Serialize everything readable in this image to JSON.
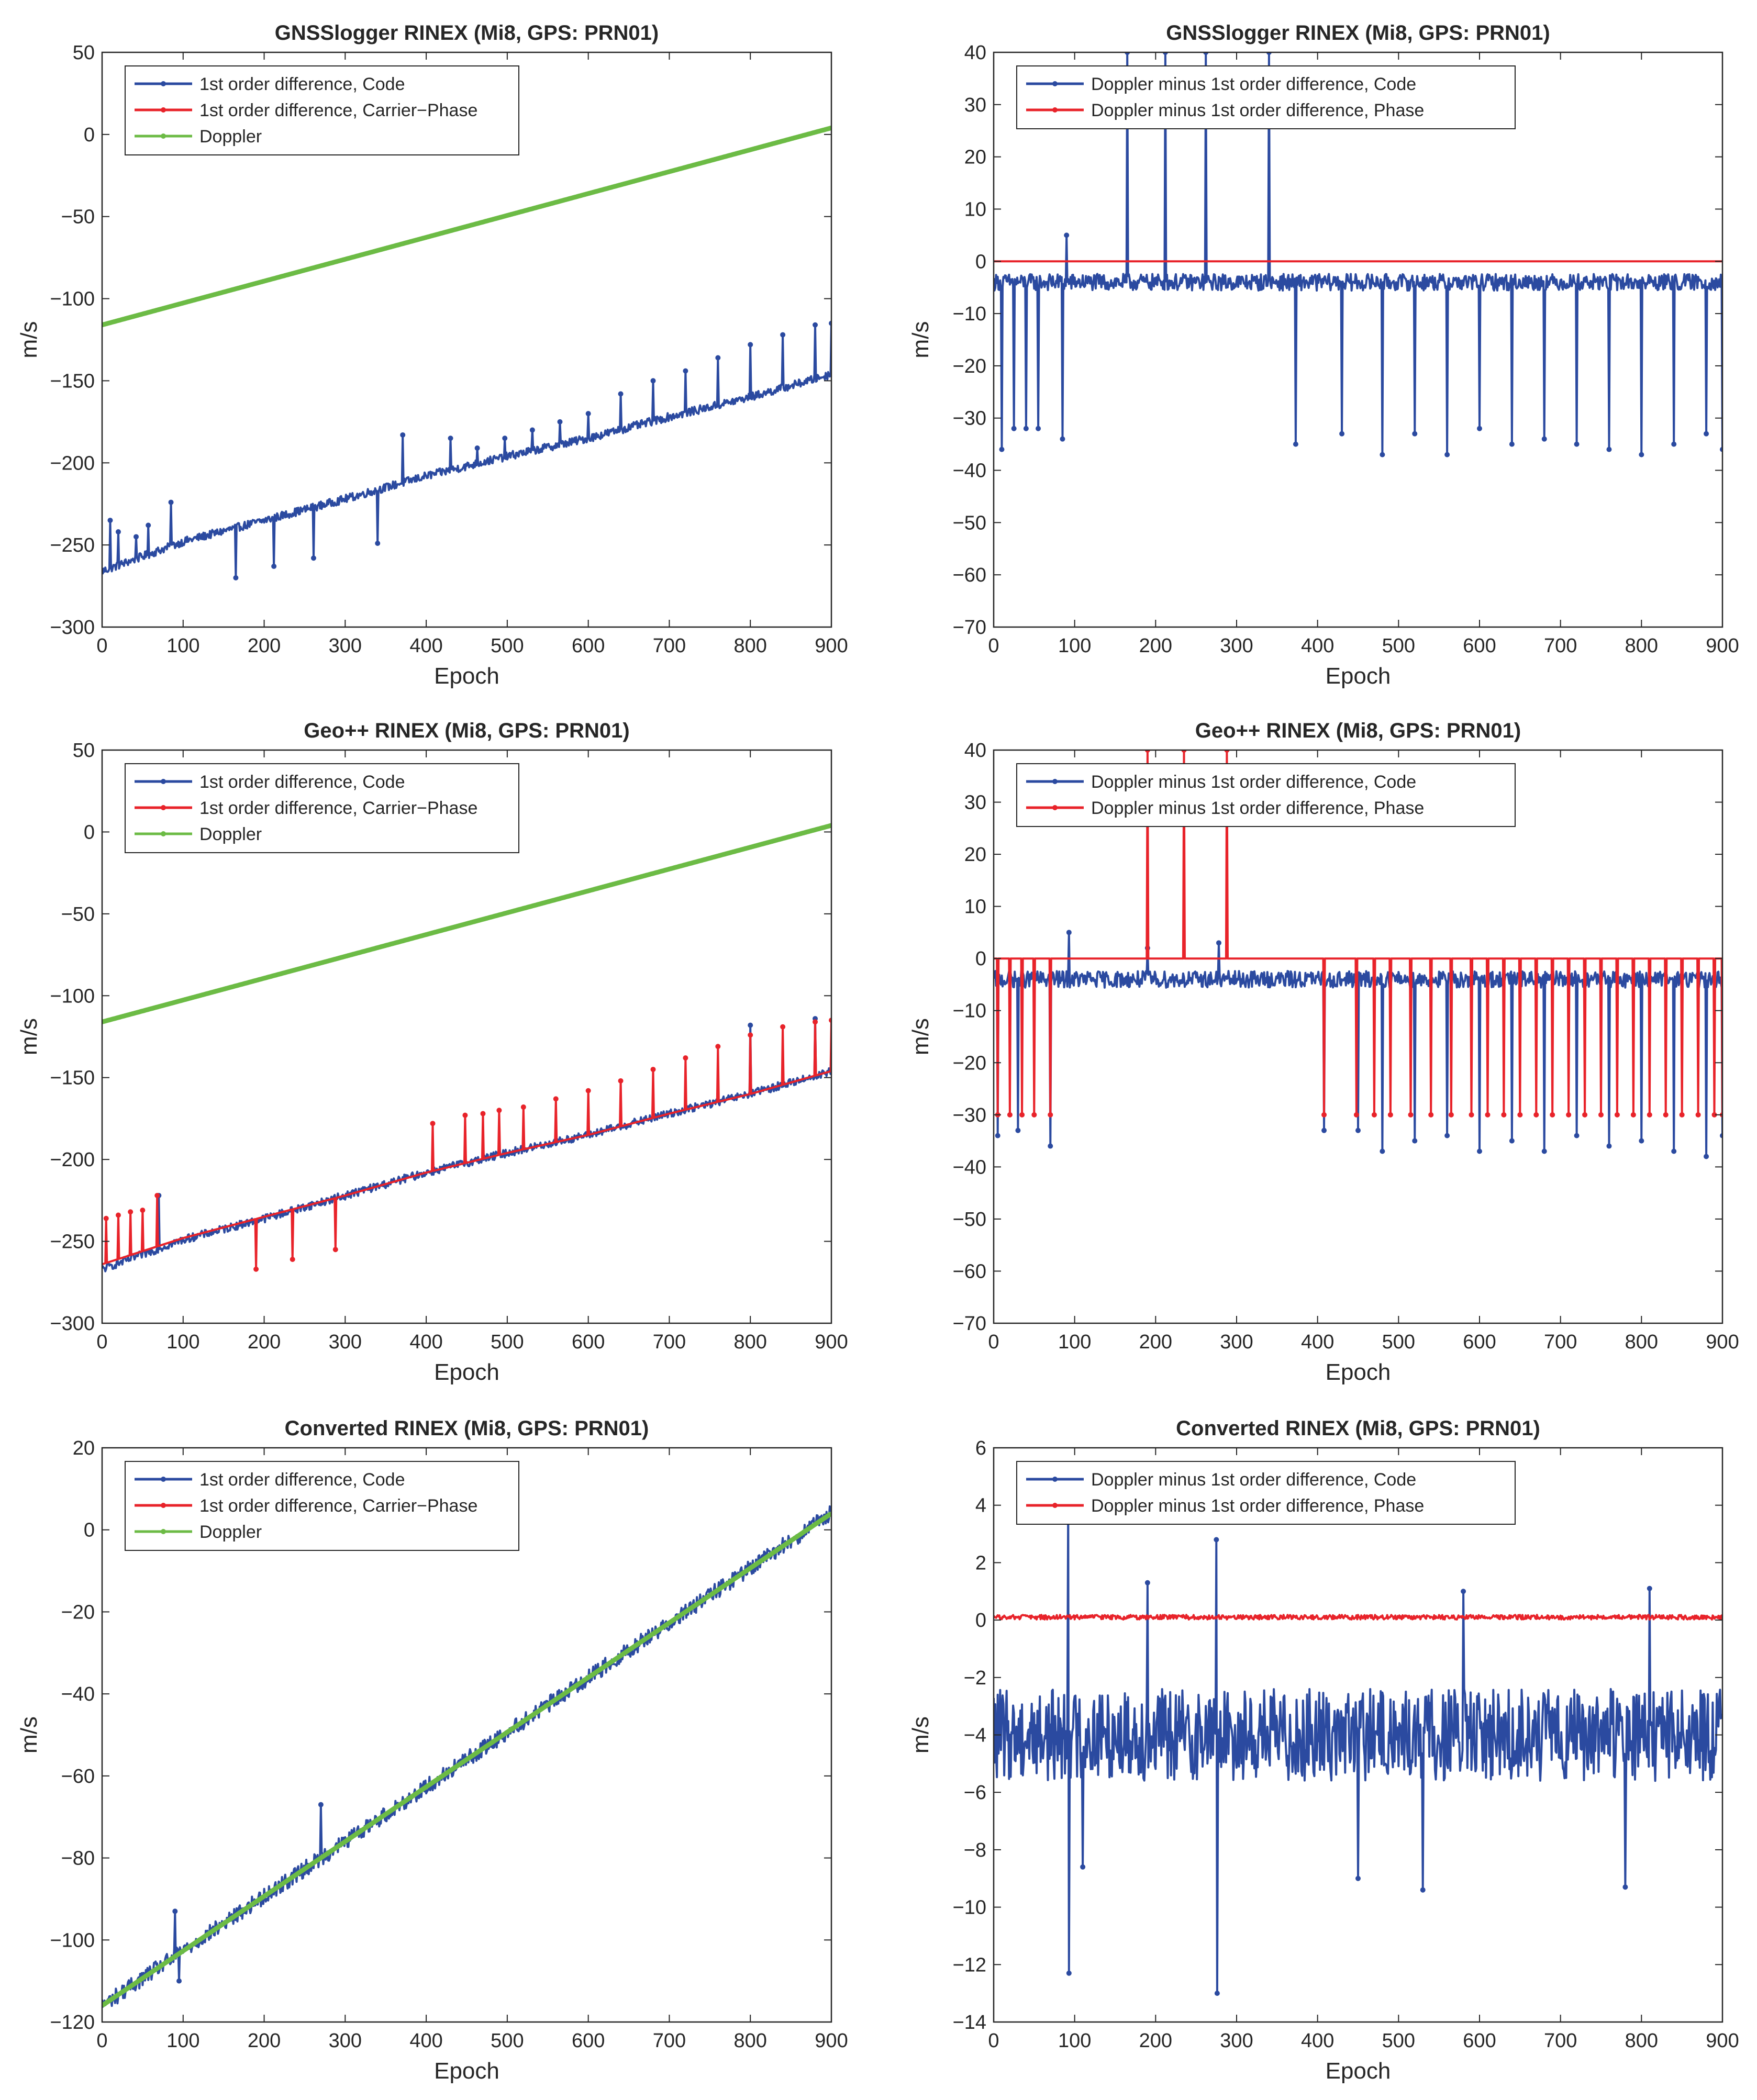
{
  "colors": {
    "code": "#2b4aa0",
    "phase": "#e8232a",
    "doppler": "#6cbb45",
    "axis": "#262626"
  },
  "chart_data": [
    {
      "id": "gnsslogger-velocity",
      "type": "line",
      "title": "GNSSlogger RINEX (Mi8, GPS: PRN01)",
      "xlabel": "Epoch",
      "ylabel": "m/s",
      "xlim": [
        0,
        900
      ],
      "ylim": [
        -300,
        50
      ],
      "xticks": [
        0,
        100,
        200,
        300,
        400,
        500,
        600,
        700,
        800,
        900
      ],
      "yticks": [
        -300,
        -250,
        -200,
        -150,
        -100,
        -50,
        0,
        50
      ],
      "legend": [
        "1st order difference, Code",
        "1st order difference, Carrier−Phase",
        "Doppler"
      ],
      "series": [
        {
          "name": "1st order difference, Code",
          "color": "code",
          "x": [
            0,
            100,
            200,
            300,
            400,
            500,
            600,
            700,
            800,
            900
          ],
          "y": [
            -266,
            -248,
            -235,
            -222,
            -208,
            -196,
            -185,
            -172,
            -160,
            -146
          ],
          "spikes": [
            [
              10,
              -235
            ],
            [
              20,
              -242
            ],
            [
              42,
              -245
            ],
            [
              57,
              -238
            ],
            [
              85,
              -224
            ],
            [
              165,
              -270
            ],
            [
              212,
              -263
            ],
            [
              261,
              -258
            ],
            [
              340,
              -249
            ],
            [
              371,
              -183
            ],
            [
              430,
              -185
            ],
            [
              463,
              -191
            ],
            [
              497,
              -185
            ],
            [
              531,
              -180
            ],
            [
              565,
              -175
            ],
            [
              600,
              -170
            ],
            [
              640,
              -158
            ],
            [
              680,
              -150
            ],
            [
              720,
              -144
            ],
            [
              760,
              -136
            ],
            [
              800,
              -128
            ],
            [
              840,
              -122
            ],
            [
              880,
              -116
            ],
            [
              900,
              -115
            ]
          ]
        },
        {
          "name": "1st order difference, Carrier−Phase",
          "color": "phase",
          "x": [
            0,
            900
          ],
          "y": [
            -116,
            4
          ],
          "spikes": []
        },
        {
          "name": "Doppler",
          "color": "doppler",
          "x": [
            0,
            900
          ],
          "y": [
            -116,
            4
          ],
          "spikes": []
        }
      ]
    },
    {
      "id": "gnsslogger-residual",
      "type": "line",
      "title": "GNSSlogger RINEX (Mi8, GPS: PRN01)",
      "xlabel": "Epoch",
      "ylabel": "m/s",
      "xlim": [
        0,
        900
      ],
      "ylim": [
        -70,
        40
      ],
      "xticks": [
        0,
        100,
        200,
        300,
        400,
        500,
        600,
        700,
        800,
        900
      ],
      "yticks": [
        -70,
        -60,
        -50,
        -40,
        -30,
        -20,
        -10,
        0,
        10,
        20,
        30,
        40
      ],
      "legend": [
        "Doppler minus 1st order difference, Code",
        "Doppler minus 1st order difference, Phase"
      ],
      "series": [
        {
          "name": "Doppler minus 1st order difference, Code",
          "color": "code",
          "x": [
            0,
            900
          ],
          "y": [
            -4,
            -4
          ],
          "spikes": [
            [
              10,
              -36
            ],
            [
              25,
              -32
            ],
            [
              40,
              -32
            ],
            [
              55,
              -32
            ],
            [
              85,
              -34
            ],
            [
              90,
              5
            ],
            [
              165,
              40
            ],
            [
              212,
              40
            ],
            [
              262,
              40
            ],
            [
              340,
              40
            ],
            [
              373,
              -35
            ],
            [
              430,
              -33
            ],
            [
              480,
              -37
            ],
            [
              520,
              -33
            ],
            [
              560,
              -37
            ],
            [
              600,
              -32
            ],
            [
              640,
              -35
            ],
            [
              680,
              -34
            ],
            [
              720,
              -35
            ],
            [
              760,
              -36
            ],
            [
              800,
              -37
            ],
            [
              840,
              -35
            ],
            [
              880,
              -33
            ],
            [
              900,
              -36
            ]
          ]
        },
        {
          "name": "Doppler minus 1st order difference, Phase",
          "color": "phase",
          "x": [
            0,
            900
          ],
          "y": [
            0,
            0
          ],
          "spikes": []
        }
      ]
    },
    {
      "id": "geopp-velocity",
      "type": "line",
      "title": "Geo++ RINEX (Mi8, GPS: PRN01)",
      "xlabel": "Epoch",
      "ylabel": "m/s",
      "xlim": [
        0,
        900
      ],
      "ylim": [
        -300,
        50
      ],
      "xticks": [
        0,
        100,
        200,
        300,
        400,
        500,
        600,
        700,
        800,
        900
      ],
      "yticks": [
        -300,
        -250,
        -200,
        -150,
        -100,
        -50,
        0,
        50
      ],
      "legend": [
        "1st order difference, Code",
        "1st order difference, Carrier−Phase",
        "Doppler"
      ],
      "series": [
        {
          "name": "1st order difference, Code",
          "color": "code",
          "x": [
            0,
            100,
            200,
            300,
            400,
            500,
            600,
            700,
            800,
            900
          ],
          "y": [
            -267,
            -249,
            -236,
            -222,
            -208,
            -196,
            -185,
            -172,
            -160,
            -146
          ],
          "spikes": [
            [
              70,
              -222
            ],
            [
              800,
              -118
            ],
            [
              880,
              -114
            ]
          ]
        },
        {
          "name": "1st order difference, Carrier−Phase",
          "color": "phase",
          "x": [
            0,
            100,
            200,
            300,
            400,
            500,
            600,
            700,
            800,
            900
          ],
          "y": [
            -264,
            -248,
            -235,
            -222,
            -208,
            -196,
            -185,
            -172,
            -160,
            -146
          ],
          "spikes": [
            [
              5,
              -236
            ],
            [
              20,
              -234
            ],
            [
              35,
              -232
            ],
            [
              50,
              -231
            ],
            [
              68,
              -222
            ],
            [
              190,
              -267
            ],
            [
              235,
              -261
            ],
            [
              288,
              -255
            ],
            [
              408,
              -178
            ],
            [
              448,
              -173
            ],
            [
              470,
              -172
            ],
            [
              490,
              -170
            ],
            [
              520,
              -168
            ],
            [
              560,
              -163
            ],
            [
              600,
              -158
            ],
            [
              640,
              -152
            ],
            [
              680,
              -145
            ],
            [
              720,
              -138
            ],
            [
              760,
              -131
            ],
            [
              800,
              -124
            ],
            [
              840,
              -119
            ],
            [
              880,
              -116
            ],
            [
              900,
              -115
            ]
          ]
        },
        {
          "name": "Doppler",
          "color": "doppler",
          "x": [
            0,
            900
          ],
          "y": [
            -116,
            4
          ],
          "spikes": []
        }
      ]
    },
    {
      "id": "geopp-residual",
      "type": "line",
      "title": "Geo++ RINEX (Mi8, GPS: PRN01)",
      "xlabel": "Epoch",
      "ylabel": "m/s",
      "xlim": [
        0,
        900
      ],
      "ylim": [
        -70,
        40
      ],
      "xticks": [
        0,
        100,
        200,
        300,
        400,
        500,
        600,
        700,
        800,
        900
      ],
      "yticks": [
        -70,
        -60,
        -50,
        -40,
        -30,
        -20,
        -10,
        0,
        10,
        20,
        30,
        40
      ],
      "legend": [
        "Doppler minus 1st order difference, Code",
        "Doppler minus 1st order difference, Phase"
      ],
      "series": [
        {
          "name": "Doppler minus 1st order difference, Code",
          "color": "code",
          "x": [
            0,
            900
          ],
          "y": [
            -4,
            -4
          ],
          "spikes": [
            [
              5,
              -34
            ],
            [
              30,
              -33
            ],
            [
              70,
              -36
            ],
            [
              93,
              5
            ],
            [
              190,
              2
            ],
            [
              278,
              3
            ],
            [
              408,
              -33
            ],
            [
              450,
              -33
            ],
            [
              480,
              -37
            ],
            [
              520,
              -35
            ],
            [
              560,
              -34
            ],
            [
              600,
              -37
            ],
            [
              640,
              -35
            ],
            [
              680,
              -37
            ],
            [
              720,
              -34
            ],
            [
              760,
              -36
            ],
            [
              800,
              -35
            ],
            [
              840,
              -37
            ],
            [
              880,
              -38
            ],
            [
              900,
              -34
            ]
          ]
        },
        {
          "name": "Doppler minus 1st order difference, Phase",
          "color": "phase",
          "x": [
            0,
            900
          ],
          "y": [
            0,
            0
          ],
          "spikes": [
            [
              5,
              -30
            ],
            [
              20,
              -30
            ],
            [
              35,
              -30
            ],
            [
              50,
              -30
            ],
            [
              70,
              -30
            ],
            [
              190,
              40
            ],
            [
              235,
              40
            ],
            [
              288,
              40
            ],
            [
              408,
              -30
            ],
            [
              448,
              -30
            ],
            [
              470,
              -30
            ],
            [
              490,
              -30
            ],
            [
              515,
              -30
            ],
            [
              540,
              -30
            ],
            [
              565,
              -30
            ],
            [
              590,
              -30
            ],
            [
              610,
              -30
            ],
            [
              630,
              -30
            ],
            [
              650,
              -30
            ],
            [
              670,
              -30
            ],
            [
              690,
              -30
            ],
            [
              710,
              -30
            ],
            [
              730,
              -30
            ],
            [
              750,
              -30
            ],
            [
              770,
              -30
            ],
            [
              790,
              -30
            ],
            [
              810,
              -30
            ],
            [
              830,
              -30
            ],
            [
              850,
              -30
            ],
            [
              870,
              -30
            ],
            [
              890,
              -30
            ],
            [
              900,
              -30
            ]
          ]
        }
      ]
    },
    {
      "id": "converted-velocity",
      "type": "line",
      "title": "Converted RINEX (Mi8, GPS: PRN01)",
      "xlabel": "Epoch",
      "ylabel": "m/s",
      "xlim": [
        0,
        900
      ],
      "ylim": [
        -120,
        20
      ],
      "xticks": [
        0,
        100,
        200,
        300,
        400,
        500,
        600,
        700,
        800,
        900
      ],
      "yticks": [
        -120,
        -100,
        -80,
        -60,
        -40,
        -20,
        0,
        20
      ],
      "legend": [
        "1st order difference, Code",
        "1st order difference, Carrier−Phase",
        "Doppler"
      ],
      "series": [
        {
          "name": "1st order difference, Code",
          "color": "code",
          "x": [
            0,
            900
          ],
          "y": [
            -116,
            4
          ],
          "spikes": [
            [
              90,
              -93
            ],
            [
              95,
              -110
            ],
            [
              270,
              -67
            ]
          ]
        },
        {
          "name": "1st order difference, Carrier−Phase",
          "color": "phase",
          "x": [
            0,
            900
          ],
          "y": [
            -116,
            4
          ],
          "spikes": []
        },
        {
          "name": "Doppler",
          "color": "doppler",
          "x": [
            0,
            900
          ],
          "y": [
            -116,
            4
          ],
          "spikes": []
        }
      ]
    },
    {
      "id": "converted-residual",
      "type": "line",
      "title": "Converted RINEX (Mi8, GPS: PRN01)",
      "xlabel": "Epoch",
      "ylabel": "m/s",
      "xlim": [
        0,
        900
      ],
      "ylim": [
        -14,
        6
      ],
      "xticks": [
        0,
        100,
        200,
        300,
        400,
        500,
        600,
        700,
        800,
        900
      ],
      "yticks": [
        -14,
        -12,
        -10,
        -8,
        -6,
        -4,
        -2,
        0,
        2,
        4,
        6
      ],
      "legend": [
        "Doppler minus 1st order difference, Code",
        "Doppler minus 1st order difference, Phase"
      ],
      "series": [
        {
          "name": "Doppler minus 1st order difference, Code",
          "color": "code",
          "x": [
            0,
            900
          ],
          "y": [
            -4,
            -4
          ],
          "spikes": [
            [
              92,
              4
            ],
            [
              93,
              -12.3
            ],
            [
              275,
              2.8
            ],
            [
              276,
              -13
            ],
            [
              190,
              1.3
            ],
            [
              580,
              1
            ],
            [
              810,
              1.1
            ],
            [
              450,
              -9
            ],
            [
              530,
              -9.4
            ],
            [
              780,
              -9.3
            ],
            [
              110,
              -8.6
            ]
          ]
        },
        {
          "name": "Doppler minus 1st order difference, Phase",
          "color": "phase",
          "x": [
            0,
            900
          ],
          "y": [
            0.1,
            0.1
          ],
          "spikes": []
        }
      ]
    }
  ]
}
